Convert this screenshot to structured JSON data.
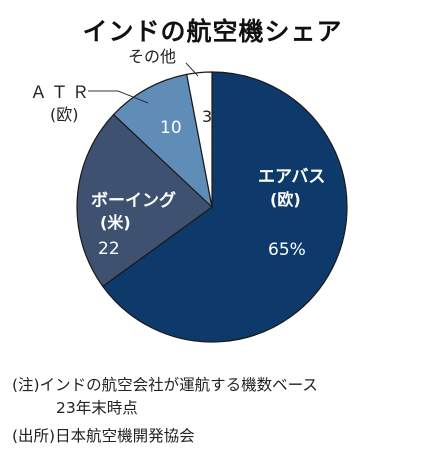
{
  "chart_data": {
    "type": "pie",
    "title": "インドの航空機シェア",
    "slices": [
      {
        "label": "エアバス",
        "sublabel": "(欧)",
        "value": 65,
        "value_label": "65%",
        "color": "#0d3a6b"
      },
      {
        "label": "ボーイング",
        "sublabel": "(米)",
        "value": 22,
        "value_label": "22",
        "color": "#3f5170"
      },
      {
        "label": "ATR",
        "sublabel": "(欧)",
        "value": 10,
        "value_label": "10",
        "color": "#5f8db8"
      },
      {
        "label": "その他",
        "sublabel": "",
        "value": 3,
        "value_label": "3",
        "color": "#ffffff"
      }
    ]
  },
  "labels": {
    "atr_label": "ＡＴＲ",
    "atr_sub": "(欧)",
    "other_label": "その他"
  },
  "notes": {
    "note1": "(注)インドの航空会社が運航する機数ベース",
    "note2": "23年末時点",
    "note3": "(出所)日本航空機開発協会"
  }
}
